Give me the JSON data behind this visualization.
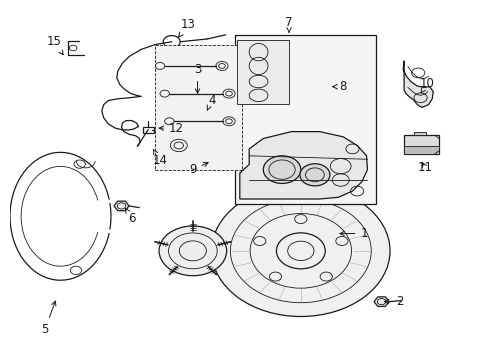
{
  "bg_color": "#ffffff",
  "line_color": "#1a1a1a",
  "fig_width": 4.89,
  "fig_height": 3.6,
  "dpi": 100,
  "label_positions": {
    "1": [
      0.755,
      0.345,
      0.695,
      0.345
    ],
    "2": [
      0.83,
      0.148,
      0.79,
      0.148
    ],
    "3": [
      0.4,
      0.82,
      0.4,
      0.74
    ],
    "4": [
      0.43,
      0.73,
      0.42,
      0.7
    ],
    "5": [
      0.075,
      0.068,
      0.1,
      0.16
    ],
    "6": [
      0.26,
      0.39,
      0.245,
      0.42
    ],
    "7": [
      0.595,
      0.955,
      0.595,
      0.925
    ],
    "8": [
      0.71,
      0.77,
      0.68,
      0.77
    ],
    "9": [
      0.39,
      0.53,
      0.43,
      0.555
    ],
    "10": [
      0.89,
      0.78,
      0.875,
      0.75
    ],
    "11": [
      0.885,
      0.535,
      0.875,
      0.56
    ],
    "12": [
      0.355,
      0.65,
      0.31,
      0.65
    ],
    "13": [
      0.38,
      0.95,
      0.355,
      0.905
    ],
    "14": [
      0.32,
      0.555,
      0.305,
      0.59
    ],
    "15": [
      0.095,
      0.9,
      0.115,
      0.86
    ]
  }
}
